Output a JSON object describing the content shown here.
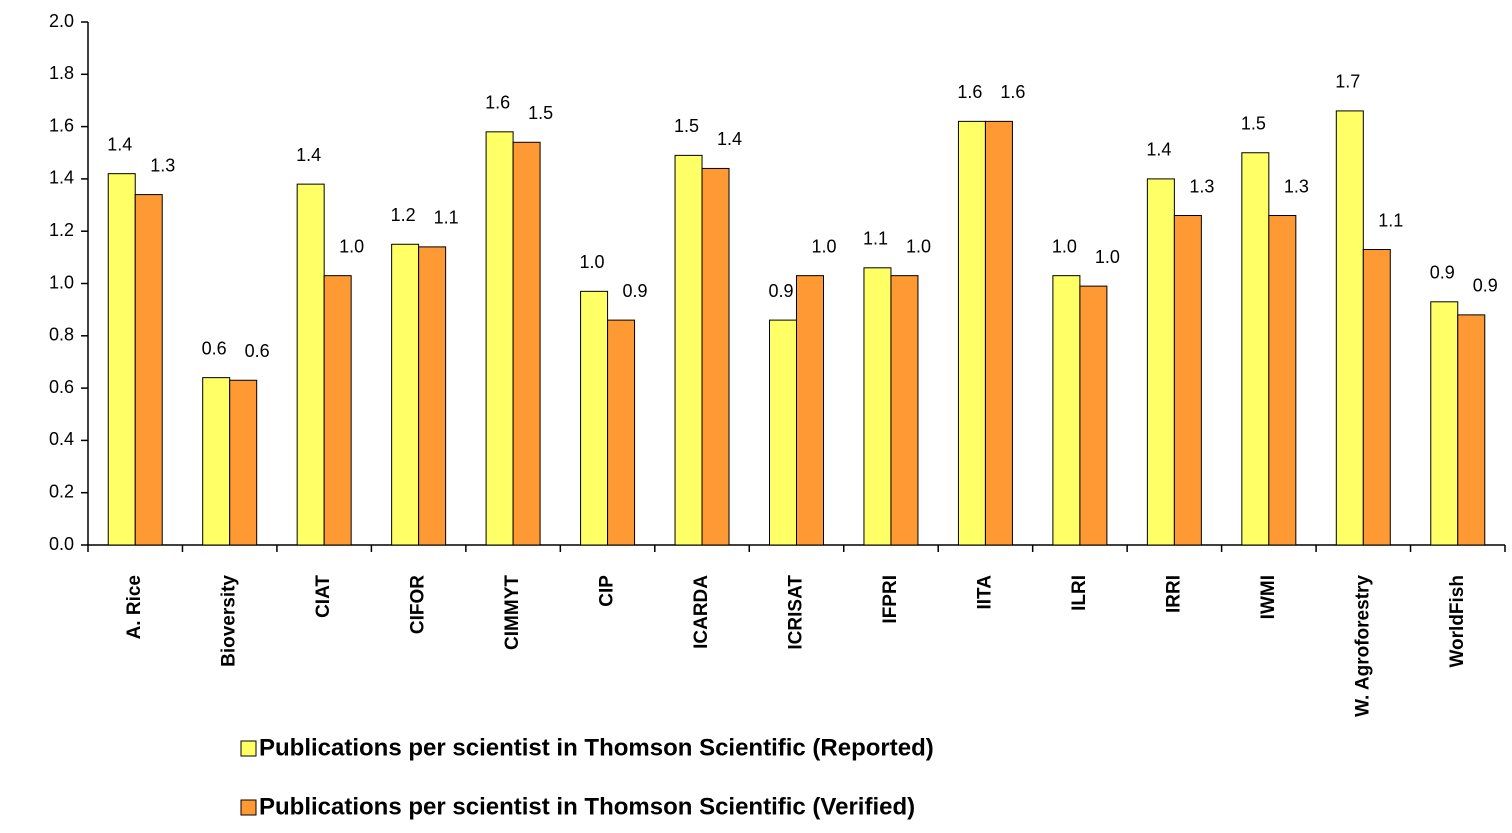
{
  "chart_data": {
    "type": "bar",
    "categories": [
      "A. Rice",
      "Bioversity",
      "CIAT",
      "CIFOR",
      "CIMMYT",
      "CIP",
      "ICARDA",
      "ICRISAT",
      "IFPRI",
      "IITA",
      "ILRI",
      "IRRI",
      "IWMI",
      "W. Agroforestry",
      "WorldFish"
    ],
    "series": [
      {
        "name": "Publications per scientist in Thomson Scientific (Reported)",
        "color": "#ffff66",
        "values": [
          1.42,
          0.64,
          1.38,
          1.15,
          1.58,
          0.97,
          1.49,
          0.86,
          1.06,
          1.62,
          1.03,
          1.4,
          1.5,
          1.66,
          0.93
        ],
        "value_labels": [
          "1.4",
          "0.6",
          "1.4",
          "1.2",
          "1.6",
          "1.0",
          "1.5",
          "0.9",
          "1.1",
          "1.6",
          "1.0",
          "1.4",
          "1.5",
          "1.7",
          "0.9"
        ]
      },
      {
        "name": "Publications per scientist in Thomson Scientific (Verified)",
        "color": "#ff9933",
        "values": [
          1.34,
          0.63,
          1.03,
          1.14,
          1.54,
          0.86,
          1.44,
          1.03,
          1.03,
          1.62,
          0.99,
          1.26,
          1.26,
          1.13,
          0.88
        ],
        "value_labels": [
          "1.3",
          "0.6",
          "1.0",
          "1.1",
          "1.5",
          "0.9",
          "1.4",
          "1.0",
          "1.0",
          "1.6",
          "1.0",
          "1.3",
          "1.3",
          "1.1",
          "0.9"
        ]
      }
    ],
    "ylim": [
      0,
      2
    ],
    "yticks": [
      {
        "value": 0,
        "label": "0.0"
      },
      {
        "value": 0.2,
        "label": "0.2"
      },
      {
        "value": 0.4,
        "label": "0.4"
      },
      {
        "value": 0.6,
        "label": "0.6"
      },
      {
        "value": 0.8,
        "label": "0.8"
      },
      {
        "value": 1,
        "label": "1.0"
      },
      {
        "value": 1.2,
        "label": "1.2"
      },
      {
        "value": 1.4,
        "label": "1.4"
      },
      {
        "value": 1.6,
        "label": "1.6"
      },
      {
        "value": 1.8,
        "label": "1.8"
      },
      {
        "value": 2,
        "label": "2.0"
      }
    ],
    "grid": false,
    "legend": "bottom"
  }
}
